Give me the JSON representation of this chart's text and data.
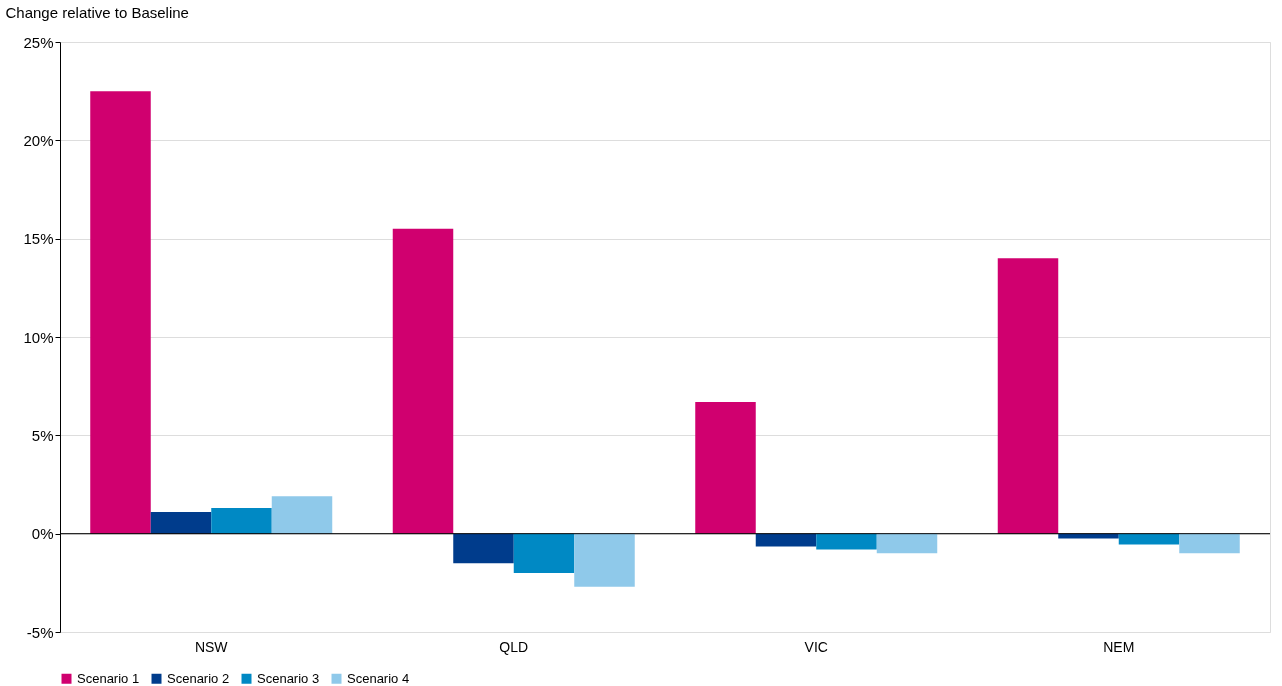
{
  "chart_data": {
    "type": "bar",
    "ylabel": "Change relative to Baseline",
    "categories": [
      "NSW",
      "QLD",
      "VIC",
      "NEM"
    ],
    "series": [
      {
        "name": "Scenario 1",
        "color": "#d0006f",
        "values": [
          22.5,
          15.5,
          6.7,
          14.0
        ]
      },
      {
        "name": "Scenario 2",
        "color": "#003c8c",
        "values": [
          1.1,
          -1.5,
          -0.65,
          -0.25
        ]
      },
      {
        "name": "Scenario 3",
        "color": "#0089c4",
        "values": [
          1.3,
          -2.0,
          -0.8,
          -0.55
        ]
      },
      {
        "name": "Scenario 4",
        "color": "#8fc9ea",
        "values": [
          1.9,
          -2.7,
          -1.0,
          -1.0
        ]
      }
    ],
    "ylim": [
      -5,
      25
    ],
    "yticks": [
      {
        "value": -5,
        "label": "-5%"
      },
      {
        "value": 0,
        "label": "0%"
      },
      {
        "value": 5,
        "label": "5%"
      },
      {
        "value": 10,
        "label": "10%"
      },
      {
        "value": 15,
        "label": "15%"
      },
      {
        "value": 20,
        "label": "20%"
      },
      {
        "value": 25,
        "label": "25%"
      }
    ],
    "grid": "y",
    "legend": "bottom"
  }
}
